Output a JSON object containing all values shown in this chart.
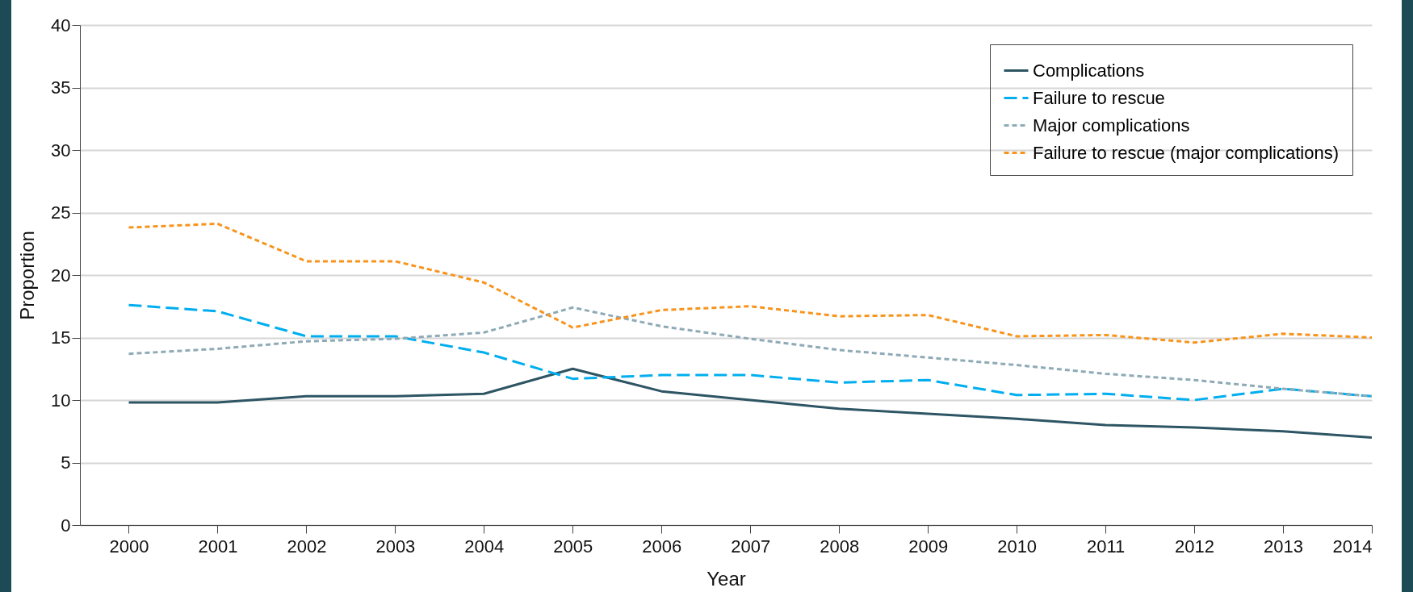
{
  "chart_data": {
    "type": "line",
    "xlabel": "Year",
    "ylabel": "Proportion",
    "x": [
      2000,
      2001,
      2002,
      2003,
      2004,
      2005,
      2006,
      2007,
      2008,
      2009,
      2010,
      2011,
      2012,
      2013,
      2014
    ],
    "xlim": [
      1999.45,
      2014
    ],
    "xticks": [
      2000,
      2001,
      2002,
      2003,
      2004,
      2005,
      2006,
      2007,
      2008,
      2009,
      2010,
      2011,
      2012,
      2013,
      2014
    ],
    "ylim": [
      0,
      40
    ],
    "yticks": [
      0,
      5,
      10,
      15,
      20,
      25,
      30,
      35,
      40
    ],
    "grid": "y",
    "legend": "top right",
    "marker": "none",
    "series": [
      {
        "name": "Complications",
        "color": "#2d5563",
        "line_style": "solid",
        "values": [
          9.8,
          9.8,
          10.3,
          10.3,
          10.5,
          12.5,
          10.7,
          10.0,
          9.3,
          8.9,
          8.5,
          8.0,
          7.8,
          7.5,
          7.0
        ]
      },
      {
        "name": "Failure to rescue",
        "color": "#00aeef",
        "line_style": "dashed",
        "values": [
          17.6,
          17.1,
          15.1,
          15.1,
          13.8,
          11.7,
          12.0,
          12.0,
          11.4,
          11.6,
          10.4,
          10.5,
          10.0,
          10.9,
          10.3
        ]
      },
      {
        "name": "Major complications",
        "color": "#8eaab6",
        "line_style": "dotted",
        "values": [
          13.7,
          14.1,
          14.7,
          14.9,
          15.4,
          17.4,
          15.9,
          14.9,
          14.0,
          13.4,
          12.8,
          12.1,
          11.6,
          10.9,
          10.3
        ]
      },
      {
        "name": "Failure to rescue (major complications)",
        "color": "#f7941d",
        "line_style": "dotted",
        "values": [
          23.8,
          24.1,
          21.1,
          21.1,
          19.4,
          15.8,
          17.2,
          17.5,
          16.7,
          16.8,
          15.1,
          15.2,
          14.6,
          15.3,
          15.0
        ]
      }
    ]
  }
}
